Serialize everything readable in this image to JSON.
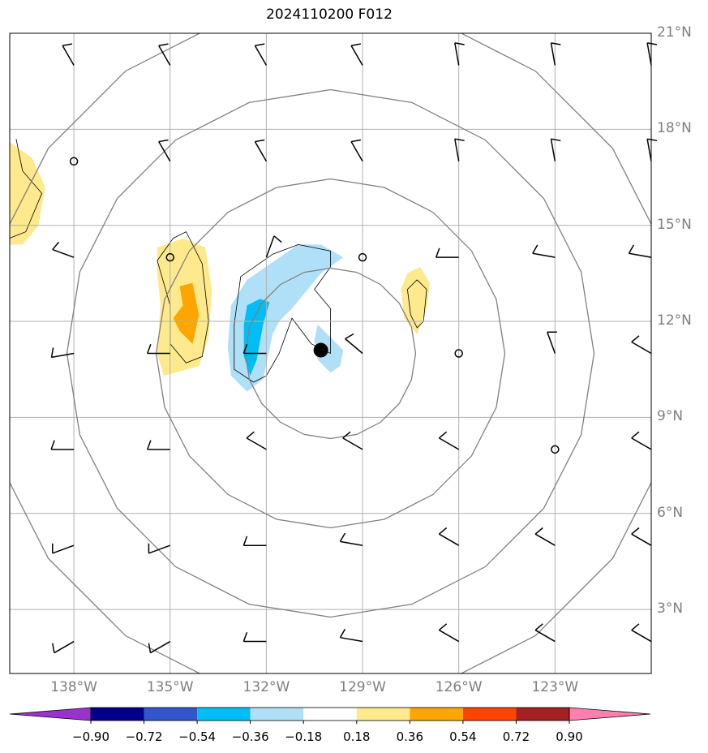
{
  "title": "2024110200 F012",
  "map": {
    "lon_range": [
      -140,
      -120
    ],
    "lat_range": [
      1,
      21
    ],
    "lon_ticks": [
      -138,
      -135,
      -132,
      -129,
      -126,
      -123
    ],
    "lat_ticks": [
      3,
      6,
      9,
      12,
      15,
      18,
      21
    ],
    "lon_tick_labels": [
      "138°W",
      "135°W",
      "132°W",
      "129°W",
      "126°W",
      "123°W"
    ],
    "lat_tick_labels": [
      "3°N",
      "6°N",
      "9°N",
      "12°N",
      "15°N",
      "18°N",
      "21°N"
    ],
    "grid": true,
    "grid_color": "#b0b0b0",
    "storm_center": {
      "lon": -130.3,
      "lat": 11.1
    },
    "range_rings": {
      "center": {
        "lon": -130,
        "lat": 11
      },
      "ring_color": "#808080",
      "count": 4
    },
    "shaded_regions": [
      {
        "level": "0.18 to 0.36",
        "color": "#fee98c"
      },
      {
        "level": "0.36 to 0.54",
        "color": "#fea500"
      },
      {
        "level": "-0.36 to -0.18",
        "color": "#b0e0f8"
      },
      {
        "level": "-0.54 to -0.36",
        "color": "#00bef5"
      }
    ],
    "wind_barbs_note": "station wind barbs at 3-degree grid points; calm circles where wind is negligible"
  },
  "colorbar": {
    "levels": [
      "−0.90",
      "−0.72",
      "−0.54",
      "−0.36",
      "−0.18",
      "0.18",
      "0.36",
      "0.54",
      "0.72",
      "0.90"
    ],
    "colors": [
      "#9933cc",
      "#00008b",
      "#3355cc",
      "#00bef5",
      "#b0e0f8",
      "#ffffff",
      "#fee98c",
      "#fea500",
      "#ff4400",
      "#a52020",
      "#ff80b0"
    ],
    "extend": "both"
  }
}
